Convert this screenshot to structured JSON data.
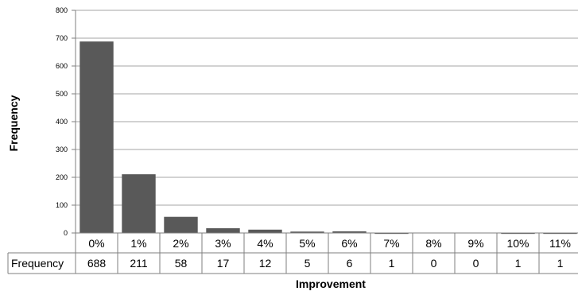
{
  "chart_data": {
    "type": "bar",
    "categories": [
      "0%",
      "1%",
      "2%",
      "3%",
      "4%",
      "5%",
      "6%",
      "7%",
      "8%",
      "9%",
      "10%",
      "11%"
    ],
    "series": [
      {
        "name": "Frequency",
        "values": [
          688,
          211,
          58,
          17,
          12,
          5,
          6,
          1,
          0,
          0,
          1,
          1
        ]
      }
    ],
    "xlabel": "Improvement",
    "ylabel": "Frequency",
    "ylim": [
      0,
      800
    ],
    "yticks": [
      "0",
      "100",
      "200",
      "300",
      "400",
      "500",
      "600",
      "700",
      "800"
    ],
    "grid": true,
    "data_table": true,
    "table_row_label": "Frequency",
    "bar_color": "#595959",
    "grid_color": "#a6a6a6",
    "border_color": "#7f7f7f"
  }
}
